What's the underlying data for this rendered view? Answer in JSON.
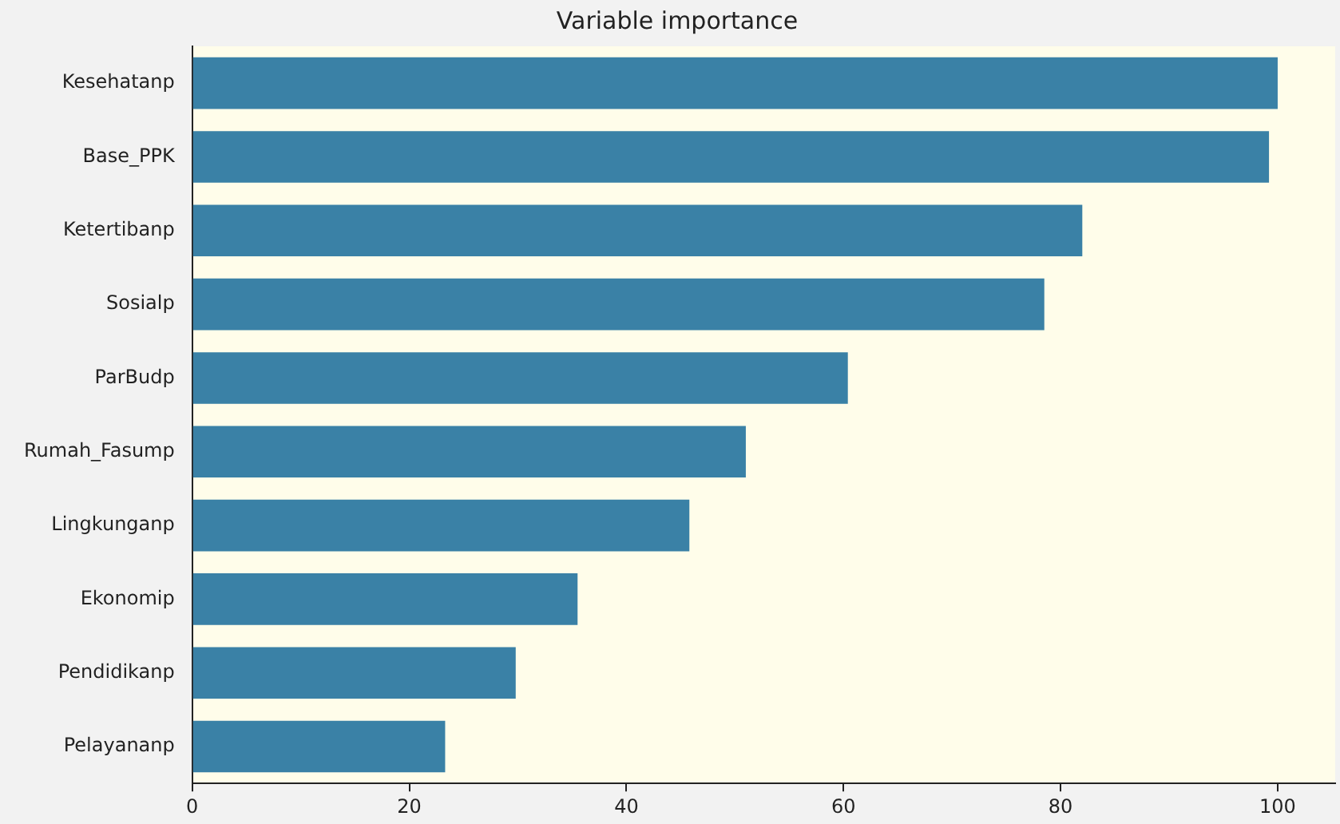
{
  "chart_data": {
    "type": "bar",
    "orientation": "horizontal",
    "title": "Variable importance",
    "categories": [
      "Kesehatanp",
      "Base_PPK",
      "Ketertibanp",
      "Sosialp",
      "ParBudp",
      "Rumah_Fasump",
      "Lingkunganp",
      "Ekonomip",
      "Pendidikanp",
      "Pelayananp"
    ],
    "values": [
      100,
      99.2,
      82,
      78.5,
      60.4,
      51,
      45.8,
      35.5,
      29.8,
      23.3
    ],
    "color": "#3a81a6",
    "xlim": [
      0,
      105.3
    ],
    "xticks": [
      0,
      20,
      40,
      60,
      80,
      100
    ],
    "grid": false,
    "legend": false
  }
}
